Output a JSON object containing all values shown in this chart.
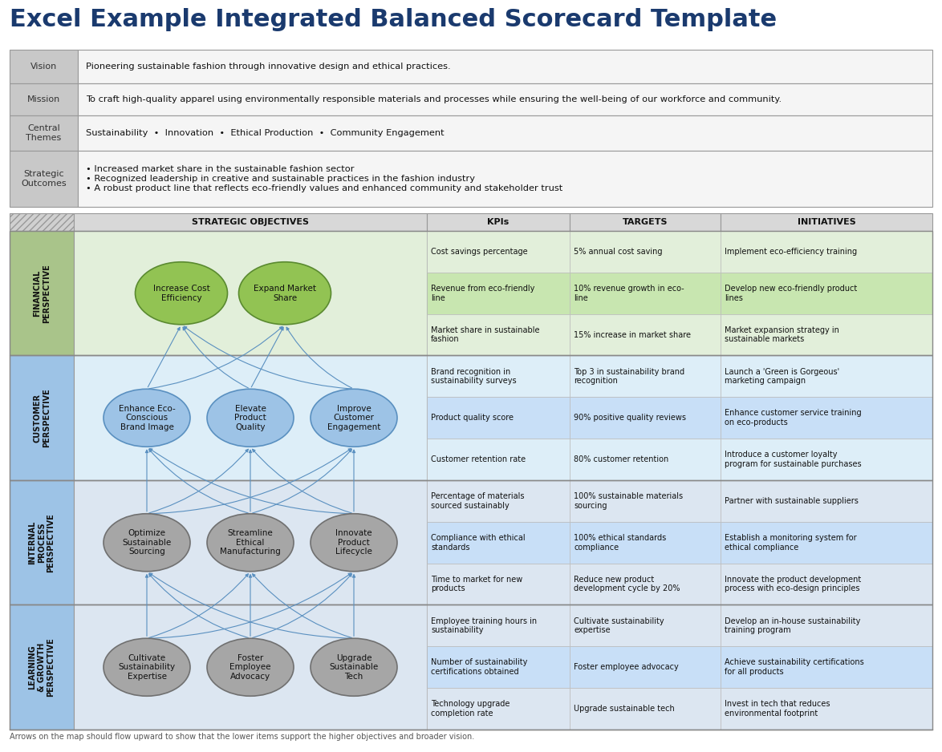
{
  "title": "Excel Example Integrated Balanced Scorecard Template",
  "title_color": "#1a3a6e",
  "bg_color": "#ffffff",
  "label_col_bg": "#c0c0c0",
  "top_rows": [
    {
      "label": "Vision",
      "text": "Pioneering sustainable fashion through innovative design and ethical practices."
    },
    {
      "label": "Mission",
      "text": "To craft high-quality apparel using environmentally responsible materials and processes while ensuring the well-being of our workforce and community."
    },
    {
      "label": "Central\nThemes",
      "text": "Sustainability  •  Innovation  •  Ethical Production  •  Community Engagement"
    },
    {
      "label": "Strategic\nOutcomes",
      "text": "• Increased market share in the sustainable fashion sector\n• Recognized leadership in creative and sustainable practices in the fashion industry\n• A robust product line that reflects eco-friendly values and enhanced community and stakeholder trust"
    }
  ],
  "col_headers": [
    "STRATEGIC OBJECTIVES",
    "KPIs",
    "TARGETS",
    "INITIATIVES"
  ],
  "perspectives": [
    {
      "name": "FINANCIAL\nPERSPECTIVE",
      "bg_color": "#e2efda",
      "label_bg": "#a9c48a",
      "ellipse_color": "#92c353",
      "ellipse_border": "#5a8a30",
      "n_ellipses": 2,
      "objectives": [
        "Increase Cost\nEfficiency",
        "Expand Market\nShare"
      ],
      "kpis": [
        "Cost savings percentage",
        "Revenue from eco-friendly\nline",
        "Market share in sustainable\nfashion"
      ],
      "targets": [
        "5% annual cost saving",
        "10% revenue growth in eco-\nline",
        "15% increase in market share"
      ],
      "initiatives": [
        "Implement eco-efficiency training",
        "Develop new eco-friendly product\nlines",
        "Market expansion strategy in\nsustainable markets"
      ],
      "highlight_row": 1
    },
    {
      "name": "CUSTOMER\nPERSPECTIVE",
      "bg_color": "#ddeef8",
      "label_bg": "#9dc3e6",
      "ellipse_color": "#9dc3e6",
      "ellipse_border": "#5a90c0",
      "n_ellipses": 3,
      "objectives": [
        "Enhance Eco-\nConscious\nBrand Image",
        "Elevate\nProduct\nQuality",
        "Improve\nCustomer\nEngagement"
      ],
      "kpis": [
        "Brand recognition in\nsustainability surveys",
        "Product quality score",
        "Customer retention rate"
      ],
      "targets": [
        "Top 3 in sustainability brand\nrecognition",
        "90% positive quality reviews",
        "80% customer retention"
      ],
      "initiatives": [
        "Launch a 'Green is Gorgeous'\nmarketing campaign",
        "Enhance customer service training\non eco-products",
        "Introduce a customer loyalty\nprogram for sustainable purchases"
      ],
      "highlight_row": 1
    },
    {
      "name": "INTERNAL\nPROCESS\nPERSPECTIVE",
      "bg_color": "#dce6f1",
      "label_bg": "#9dc3e6",
      "ellipse_color": "#a6a6a6",
      "ellipse_border": "#707070",
      "n_ellipses": 3,
      "objectives": [
        "Optimize\nSustainable\nSourcing",
        "Streamline\nEthical\nManufacturing",
        "Innovate\nProduct\nLifecycle"
      ],
      "kpis": [
        "Percentage of materials\nsourced sustainably",
        "Compliance with ethical\nstandards",
        "Time to market for new\nproducts"
      ],
      "targets": [
        "100% sustainable materials\nsourcing",
        "100% ethical standards\ncompliance",
        "Reduce new product\ndevelopment cycle by 20%"
      ],
      "initiatives": [
        "Partner with sustainable suppliers",
        "Establish a monitoring system for\nethical compliance",
        "Innovate the product development\nprocess with eco-design principles"
      ],
      "highlight_row": 1
    },
    {
      "name": "LEARNING\n& GROWTH\nPERSPECTIVE",
      "bg_color": "#dce6f1",
      "label_bg": "#9dc3e6",
      "ellipse_color": "#a6a6a6",
      "ellipse_border": "#707070",
      "n_ellipses": 3,
      "objectives": [
        "Cultivate\nSustainability\nExpertise",
        "Foster\nEmployee\nAdvocacy",
        "Upgrade\nSustainable\nTech"
      ],
      "kpis": [
        "Employee training hours in\nsustainability",
        "Number of sustainability\ncertifications obtained",
        "Technology upgrade\ncompletion rate"
      ],
      "targets": [
        "Cultivate sustainability\nexpertise",
        "Foster employee advocacy",
        "Upgrade sustainable tech"
      ],
      "initiatives": [
        "Develop an in-house sustainability\ntraining program",
        "Achieve sustainability certifications\nfor all products",
        "Invest in tech that reduces\nenvironmental footprint"
      ],
      "highlight_row": 1
    }
  ],
  "arrow_color": "#70ad47",
  "arrow_color_blue": "#5a90c0",
  "footnote": "Arrows on the map should flow upward to show that the lower items support the higher objectives and broader vision."
}
